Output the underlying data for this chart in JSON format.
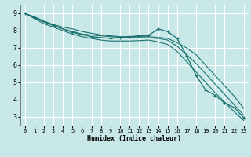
{
  "xlabel": "Humidex (Indice chaleur)",
  "bg_color": "#c8e8e8",
  "grid_color": "#ffffff",
  "line_color": "#1a7070",
  "xlim": [
    -0.5,
    23.5
  ],
  "ylim": [
    2.5,
    9.5
  ],
  "xticks": [
    0,
    1,
    2,
    3,
    4,
    5,
    6,
    7,
    8,
    9,
    10,
    11,
    12,
    13,
    14,
    15,
    16,
    17,
    18,
    19,
    20,
    21,
    22,
    23
  ],
  "yticks": [
    3,
    4,
    5,
    6,
    7,
    8,
    9
  ],
  "lines": [
    {
      "x": [
        0,
        1,
        2,
        3,
        4,
        5,
        6,
        7,
        8,
        9,
        10,
        11,
        12,
        13,
        14,
        15,
        16,
        17,
        18,
        19,
        20,
        21,
        22,
        23
      ],
      "y": [
        9.0,
        8.8,
        8.55,
        8.35,
        8.2,
        8.1,
        7.95,
        7.85,
        7.75,
        7.7,
        7.65,
        7.65,
        7.65,
        7.65,
        7.6,
        7.55,
        7.3,
        7.0,
        6.6,
        6.0,
        5.4,
        4.8,
        4.2,
        3.5
      ],
      "marker": false
    },
    {
      "x": [
        0,
        1,
        2,
        3,
        4,
        5,
        6,
        7,
        8,
        9,
        10,
        11,
        12,
        13,
        14,
        15,
        16,
        17,
        18,
        19,
        20,
        21,
        22,
        23
      ],
      "y": [
        9.0,
        8.75,
        8.5,
        8.3,
        8.1,
        7.95,
        7.8,
        7.75,
        7.7,
        7.65,
        7.6,
        7.6,
        7.6,
        7.58,
        7.55,
        7.45,
        7.1,
        6.6,
        6.1,
        5.5,
        4.9,
        4.3,
        3.7,
        3.1
      ],
      "marker": false
    },
    {
      "x": [
        0,
        1,
        2,
        3,
        4,
        5,
        6,
        7,
        8,
        9,
        10,
        11,
        12,
        13,
        14,
        15,
        16,
        17,
        18,
        19,
        20,
        21,
        22,
        23
      ],
      "y": [
        9.0,
        8.7,
        8.4,
        8.2,
        8.0,
        7.8,
        7.65,
        7.55,
        7.45,
        7.4,
        7.4,
        7.4,
        7.42,
        7.45,
        7.35,
        7.2,
        6.8,
        6.2,
        5.6,
        5.0,
        4.4,
        3.85,
        3.3,
        2.8
      ],
      "marker": false
    },
    {
      "x": [
        0,
        1,
        3,
        5,
        7,
        9,
        10,
        11,
        12,
        13,
        14,
        15,
        16,
        17,
        18,
        19,
        20,
        21,
        22,
        23
      ],
      "y": [
        9.0,
        8.75,
        8.3,
        7.9,
        7.65,
        7.55,
        7.6,
        7.65,
        7.7,
        7.72,
        8.1,
        7.95,
        7.55,
        6.55,
        5.4,
        4.55,
        4.25,
        3.8,
        3.55,
        2.95
      ],
      "marker": true
    }
  ]
}
